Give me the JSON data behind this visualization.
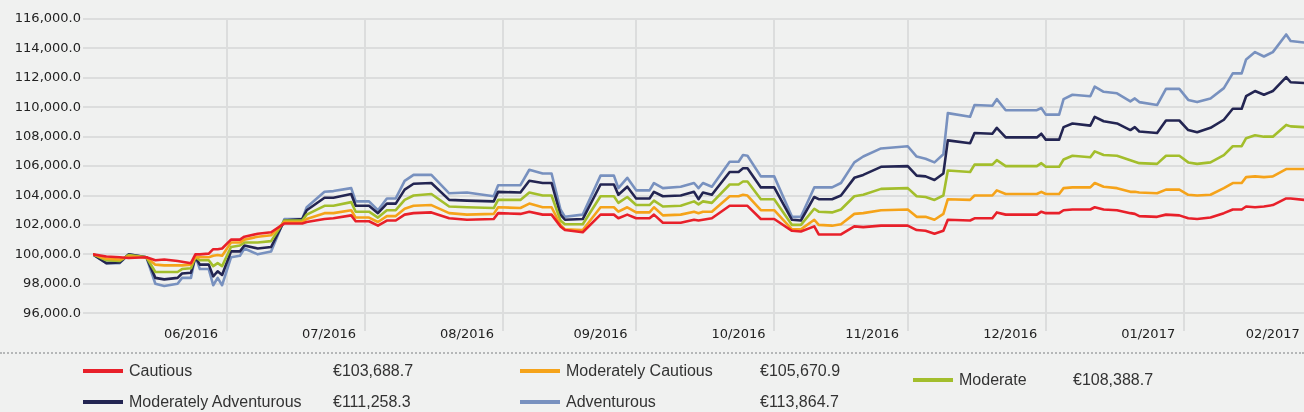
{
  "chart_data": {
    "type": "line",
    "x": [
      "2016-06-01",
      "2016-06-04",
      "2016-06-07",
      "2016-06-09",
      "2016-06-13",
      "2016-06-15",
      "2016-06-17",
      "2016-06-20",
      "2016-06-21",
      "2016-06-23",
      "2016-06-24",
      "2016-06-25",
      "2016-06-27",
      "2016-06-28",
      "2016-06-29",
      "2016-06-30",
      "2016-07-02",
      "2016-07-04",
      "2016-07-05",
      "2016-07-08",
      "2016-07-11",
      "2016-07-14",
      "2016-07-18",
      "2016-07-19",
      "2016-07-23",
      "2016-07-25",
      "2016-07-29",
      "2016-07-30",
      "2016-08-02",
      "2016-08-04",
      "2016-08-06",
      "2016-08-08",
      "2016-08-10",
      "2016-08-12",
      "2016-08-16",
      "2016-08-20",
      "2016-08-24",
      "2016-08-30",
      "2016-08-31",
      "2016-09-05",
      "2016-09-07",
      "2016-09-10",
      "2016-09-12",
      "2016-09-14",
      "2016-09-15",
      "2016-09-19",
      "2016-09-23",
      "2016-09-26",
      "2016-09-27",
      "2016-09-29",
      "2016-10-01",
      "2016-10-04",
      "2016-10-05",
      "2016-10-07",
      "2016-10-11",
      "2016-10-14",
      "2016-10-15",
      "2016-10-16",
      "2016-10-18",
      "2016-10-22",
      "2016-10-24",
      "2016-10-25",
      "2016-10-26",
      "2016-10-29",
      "2016-11-01",
      "2016-11-05",
      "2016-11-07",
      "2016-11-10",
      "2016-11-11",
      "2016-11-14",
      "2016-11-16",
      "2016-11-19",
      "2016-11-21",
      "2016-11-25",
      "2016-12-01",
      "2016-12-03",
      "2016-12-05",
      "2016-12-07",
      "2016-12-09",
      "2016-12-10",
      "2016-12-15",
      "2016-12-16",
      "2016-12-20",
      "2016-12-21",
      "2016-12-23",
      "2016-12-30",
      "2016-12-31",
      "2017-01-01",
      "2017-01-04",
      "2017-01-05",
      "2017-01-07",
      "2017-01-11",
      "2017-01-12",
      "2017-01-14",
      "2017-01-17",
      "2017-01-20",
      "2017-01-21",
      "2017-01-22",
      "2017-01-26",
      "2017-01-28",
      "2017-01-31",
      "2017-02-02",
      "2017-02-04",
      "2017-02-07",
      "2017-02-10",
      "2017-02-12",
      "2017-02-14",
      "2017-02-15",
      "2017-02-17",
      "2017-02-19",
      "2017-02-21",
      "2017-02-24",
      "2017-02-25",
      "2017-02-28"
    ],
    "series": [
      {
        "name": "Cautious",
        "color": "#e8202a",
        "values": [
          100000,
          99850,
          99800,
          99750,
          99800,
          99600,
          99650,
          99550,
          99500,
          99400,
          100000,
          100000,
          100050,
          100350,
          100350,
          100400,
          101000,
          101000,
          101200,
          101400,
          101500,
          102100,
          102100,
          102200,
          102400,
          102450,
          102650,
          102250,
          102250,
          101950,
          102300,
          102300,
          102700,
          102800,
          102850,
          102450,
          102350,
          102400,
          102800,
          102750,
          102900,
          102700,
          102700,
          101900,
          101650,
          101500,
          102700,
          102700,
          102450,
          102700,
          102450,
          102450,
          102700,
          102150,
          102150,
          102350,
          102300,
          102350,
          102450,
          103300,
          103300,
          103300,
          103300,
          102400,
          102400,
          101600,
          101550,
          101900,
          101350,
          101350,
          101350,
          101900,
          101850,
          101950,
          101950,
          101650,
          101600,
          101400,
          101600,
          102350,
          102300,
          102450,
          102450,
          102850,
          102700,
          102700,
          102900,
          102800,
          102800,
          103000,
          103050,
          103050,
          103200,
          103050,
          103000,
          102800,
          102750,
          102600,
          102550,
          102700,
          102650,
          102450,
          102400,
          102500,
          102800,
          103050,
          103050,
          103250,
          103200,
          103250,
          103350,
          103800,
          103800,
          103700
        ]
      },
      {
        "name": "Moderately Cautious",
        "color": "#f5a31a",
        "values": [
          100000,
          99700,
          99650,
          99850,
          99800,
          99300,
          99250,
          99250,
          99250,
          99300,
          99800,
          99800,
          99800,
          99900,
          99950,
          99900,
          100800,
          100800,
          101000,
          101200,
          101300,
          102200,
          102200,
          102400,
          102800,
          102800,
          103000,
          102500,
          102500,
          102200,
          102600,
          102600,
          103100,
          103300,
          103350,
          102800,
          102700,
          102750,
          103200,
          103150,
          103450,
          103200,
          103200,
          102000,
          101700,
          101650,
          103200,
          103200,
          102900,
          103200,
          102850,
          102850,
          103200,
          102650,
          102700,
          102900,
          102800,
          102900,
          102900,
          103950,
          103950,
          104050,
          104000,
          103000,
          103000,
          101700,
          101700,
          102350,
          102000,
          101950,
          102050,
          102750,
          102800,
          103000,
          103050,
          102550,
          102550,
          102350,
          102750,
          103750,
          103700,
          104000,
          104000,
          104350,
          104100,
          104100,
          104250,
          104100,
          104100,
          104500,
          104550,
          104550,
          104850,
          104600,
          104500,
          104250,
          104250,
          104200,
          104150,
          104400,
          104400,
          104050,
          104000,
          104050,
          104500,
          104850,
          104850,
          105250,
          105300,
          105250,
          105300,
          105800,
          105800,
          105800
        ]
      },
      {
        "name": "Moderate",
        "color": "#a3be2c",
        "values": [
          100000,
          99600,
          99550,
          99950,
          99800,
          98800,
          98800,
          98800,
          99000,
          99050,
          99800,
          99600,
          99600,
          99200,
          99400,
          99200,
          100500,
          100600,
          100800,
          100800,
          100900,
          102300,
          102300,
          102700,
          103300,
          103300,
          103550,
          102900,
          102900,
          102500,
          103000,
          103000,
          103700,
          104000,
          104100,
          103250,
          103200,
          103150,
          103700,
          103700,
          104200,
          104000,
          104000,
          102300,
          102050,
          102050,
          103950,
          103950,
          103500,
          103900,
          103350,
          103350,
          103650,
          103250,
          103300,
          103600,
          103400,
          103600,
          103500,
          104750,
          104750,
          104950,
          104950,
          103750,
          103750,
          102000,
          102000,
          103100,
          102900,
          102850,
          103050,
          103950,
          104050,
          104450,
          104500,
          103950,
          103900,
          103700,
          104000,
          105700,
          105600,
          106100,
          106100,
          106400,
          106000,
          106000,
          106200,
          105950,
          105950,
          106450,
          106700,
          106600,
          107000,
          106750,
          106700,
          106400,
          106300,
          106200,
          106150,
          106700,
          106700,
          106250,
          106150,
          106250,
          106750,
          107350,
          107350,
          107900,
          108100,
          108000,
          108000,
          108800,
          108700,
          108650
        ]
      },
      {
        "name": "Moderately Adventurous",
        "color": "#232552",
        "values": [
          100000,
          99400,
          99450,
          100000,
          99800,
          98400,
          98300,
          98400,
          98700,
          98750,
          99800,
          99300,
          99300,
          98500,
          98850,
          98600,
          100200,
          100200,
          100600,
          100400,
          100500,
          102300,
          102400,
          103000,
          103850,
          103850,
          104100,
          103300,
          103300,
          102800,
          103450,
          103450,
          104400,
          104800,
          104850,
          103700,
          103650,
          103600,
          104250,
          104200,
          105000,
          104850,
          104850,
          102700,
          102350,
          102400,
          104750,
          104750,
          104050,
          104600,
          103800,
          103800,
          104250,
          103950,
          104000,
          104250,
          103750,
          104200,
          104050,
          105600,
          105600,
          105850,
          105850,
          104550,
          104550,
          102350,
          102300,
          103900,
          103750,
          103750,
          104000,
          105200,
          105400,
          105950,
          106000,
          105350,
          105300,
          105050,
          105500,
          107750,
          107550,
          108250,
          108200,
          108600,
          107950,
          107950,
          108200,
          107800,
          107800,
          108650,
          108900,
          108750,
          109350,
          109050,
          108900,
          108450,
          108650,
          108350,
          108250,
          109100,
          109100,
          108450,
          108300,
          108600,
          109150,
          109900,
          109900,
          110750,
          111100,
          110850,
          111100,
          112050,
          111700,
          111650
        ]
      },
      {
        "name": "Adventurous",
        "color": "#7891bf",
        "values": [
          100000,
          99400,
          99400,
          100000,
          99800,
          98000,
          97850,
          98000,
          98400,
          98400,
          99900,
          99000,
          99000,
          97900,
          98400,
          97900,
          99800,
          99900,
          100400,
          100000,
          100200,
          102400,
          102400,
          103200,
          104250,
          104300,
          104500,
          103600,
          103600,
          103000,
          103800,
          103800,
          105000,
          105400,
          105400,
          104150,
          104200,
          103950,
          104700,
          104700,
          105750,
          105500,
          105500,
          103050,
          102550,
          102700,
          105350,
          105350,
          104500,
          105200,
          104350,
          104350,
          104850,
          104500,
          104600,
          104850,
          104500,
          104850,
          104600,
          106300,
          106300,
          106750,
          106700,
          105300,
          105300,
          102550,
          102550,
          104550,
          104550,
          104550,
          104850,
          106250,
          106650,
          107200,
          107350,
          106650,
          106500,
          106250,
          106800,
          109600,
          109350,
          110150,
          110100,
          110550,
          109800,
          109800,
          109950,
          109500,
          109500,
          110550,
          110850,
          110750,
          111400,
          111050,
          110950,
          110400,
          110600,
          110350,
          110150,
          111250,
          111250,
          110500,
          110350,
          110600,
          111300,
          112300,
          112300,
          113250,
          113750,
          113450,
          113750,
          114950,
          114500,
          114400
        ]
      }
    ],
    "xlim": [
      "2016-06-01",
      "2017-02-28"
    ],
    "xticks": [
      {
        "value": "2016-06-23",
        "label": "06/2016"
      },
      {
        "value": "2016-07-01",
        "label": null
      },
      {
        "value": "2016-07-24",
        "label": "07/2016"
      },
      {
        "value": "2016-08-01",
        "label": null
      },
      {
        "value": "2016-08-24",
        "label": "08/2016"
      },
      {
        "value": "2016-09-01",
        "label": null
      },
      {
        "value": "2016-09-23",
        "label": "09/2016"
      },
      {
        "value": "2016-10-01",
        "label": null
      },
      {
        "value": "2016-10-24",
        "label": "10/2016"
      },
      {
        "value": "2016-11-01",
        "label": null
      },
      {
        "value": "2016-11-23",
        "label": "11/2016"
      },
      {
        "value": "2016-12-01",
        "label": null
      },
      {
        "value": "2016-12-24",
        "label": "12/2016"
      },
      {
        "value": "2017-01-01",
        "label": null
      },
      {
        "value": "2017-01-24",
        "label": "01/2017"
      },
      {
        "value": "2017-02-01",
        "label": null
      },
      {
        "value": "2017-02-21",
        "label": "02/2017"
      }
    ],
    "ylim": [
      95400,
      116000
    ],
    "yticks": [
      {
        "value": 96000,
        "label": "96,000.0"
      },
      {
        "value": 98000,
        "label": "98,000.0"
      },
      {
        "value": 100000,
        "label": "100,000.0"
      },
      {
        "value": 102000,
        "label": "102,000.0"
      },
      {
        "value": 104000,
        "label": "104,000.0"
      },
      {
        "value": 106000,
        "label": "106,000.0"
      },
      {
        "value": 108000,
        "label": "108,000.0"
      },
      {
        "value": 110000,
        "label": "110,000.0"
      },
      {
        "value": 112000,
        "label": "112,000.0"
      },
      {
        "value": 114000,
        "label": "114,000.0"
      },
      {
        "value": 116000,
        "label": "116,000.0"
      }
    ],
    "grid": true,
    "legend": "bottom",
    "marker": "none",
    "line_style": "solid",
    "annotations": [
      "€103,688.7",
      "€105,670.9",
      "€108,388.7",
      "€111,258.3",
      "€113,864.7"
    ]
  }
}
